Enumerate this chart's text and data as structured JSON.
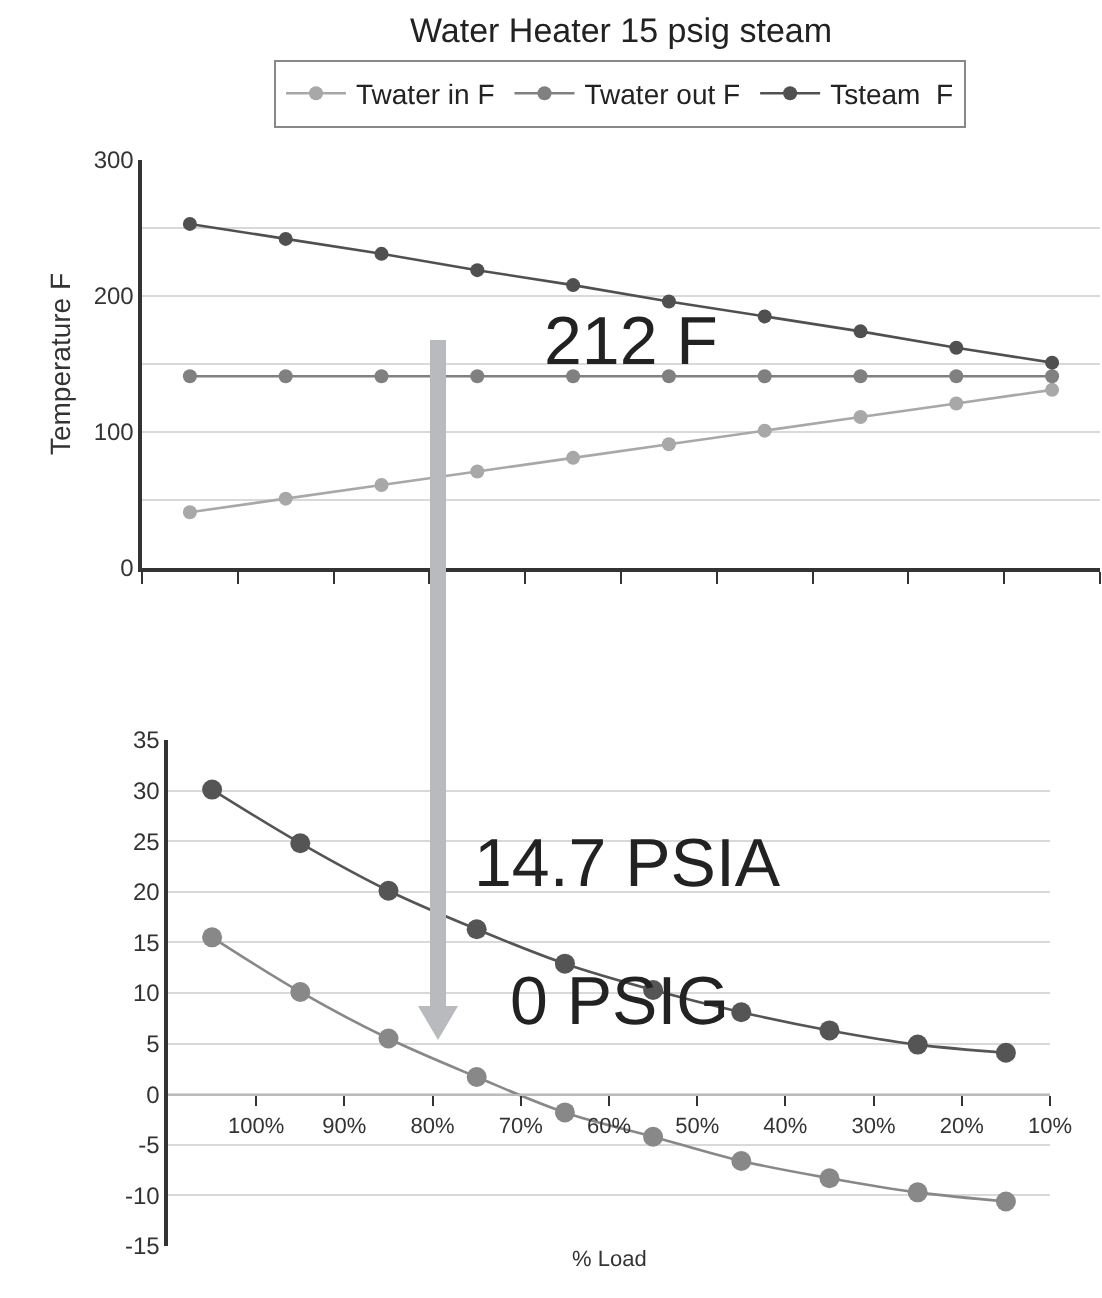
{
  "chart_data": [
    {
      "type": "line",
      "title": "Water Heater 15 psig steam",
      "ylabel": "Temperature F",
      "categories": [
        null,
        null,
        null,
        null,
        null,
        null,
        null,
        null,
        null,
        null
      ],
      "series": [
        {
          "name": "Twater in F",
          "color": "#a8a8a8",
          "values": [
            41,
            51,
            61,
            71,
            81,
            91,
            101,
            111,
            121,
            131
          ]
        },
        {
          "name": "Twater out F",
          "color": "#808080",
          "values": [
            141,
            141,
            141,
            141,
            141,
            141,
            141,
            141,
            141,
            141
          ]
        },
        {
          "name": "Tsteam  F",
          "color": "#505050",
          "values": [
            253,
            242,
            231,
            219,
            208,
            196,
            185,
            174,
            162,
            151
          ]
        }
      ],
      "ylim": [
        0,
        300
      ],
      "yticks": [
        0,
        {
          "value": 50,
          "label": null
        },
        100,
        {
          "value": 150,
          "label": null
        },
        200,
        {
          "value": 250,
          "label": null
        },
        300
      ],
      "grid": "y",
      "legend": "top",
      "marker": "circle",
      "line_style": "solid",
      "tick_labels": "y",
      "annotations": [
        "212 F"
      ]
    },
    {
      "type": "line",
      "xlabel": "% Load",
      "x": [
        105,
        95,
        85,
        75,
        65,
        55,
        45,
        35,
        25,
        15
      ],
      "series": [
        {
          "color": "#555555",
          "values": [
            30.1,
            24.8,
            20.1,
            16.3,
            12.9,
            10.3,
            8.1,
            6.3,
            4.9,
            4.1
          ]
        },
        {
          "color": "#888888",
          "values": [
            15.5,
            10.1,
            5.5,
            1.7,
            -1.8,
            -4.2,
            -6.6,
            -8.3,
            -9.7,
            -10.6
          ]
        }
      ],
      "xlim": [
        110,
        10
      ],
      "xticks": [
        {
          "value": 100,
          "label": "100%"
        },
        {
          "value": 90,
          "label": "90%"
        },
        {
          "value": 80,
          "label": "80%"
        },
        {
          "value": 70,
          "label": "70%"
        },
        {
          "value": 60,
          "label": "60%"
        },
        {
          "value": 50,
          "label": "50%"
        },
        {
          "value": 40,
          "label": "40%"
        },
        {
          "value": 30,
          "label": "30%"
        },
        {
          "value": 20,
          "label": "20%"
        },
        {
          "value": 10,
          "label": "10%"
        }
      ],
      "ylim": [
        -15,
        35
      ],
      "yticks": [
        -15,
        -10,
        -5,
        0,
        5,
        10,
        15,
        20,
        25,
        30,
        35
      ],
      "grid": "y",
      "marker": "circle",
      "line_style": "solid",
      "annotations": [
        "14.7 PSIA",
        "0 PSIG"
      ]
    }
  ]
}
